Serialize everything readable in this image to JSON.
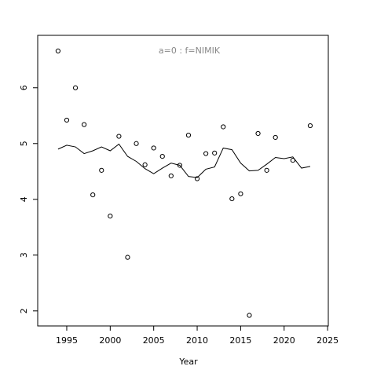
{
  "chart_data": {
    "type": "scatter",
    "title": "a=0  :  f=NIMIK",
    "xlabel": "Year",
    "xlim": [
      1991.66,
      2025.08
    ],
    "ylim": [
      1.73,
      6.94
    ],
    "xticks": [
      1995,
      2000,
      2005,
      2010,
      2015,
      2020,
      2025
    ],
    "yticks": [
      2,
      3,
      4,
      5,
      6
    ],
    "series": [
      {
        "kind": "points",
        "color": "#000000",
        "x": [
          1994,
          1995,
          1996,
          1997,
          1998,
          1999,
          2000,
          2001,
          2002,
          2003,
          2004,
          2005,
          2006,
          2007,
          2008,
          2009,
          2010,
          2011,
          2012,
          2013,
          2014,
          2015,
          2016,
          2017,
          2018,
          2019,
          2021,
          2023
        ],
        "values": [
          6.66,
          5.42,
          6.0,
          5.34,
          4.08,
          4.52,
          3.7,
          5.13,
          2.96,
          5.0,
          4.62,
          4.92,
          4.77,
          4.42,
          4.61,
          5.15,
          4.37,
          4.82,
          4.83,
          5.3,
          4.01,
          4.1,
          1.92,
          5.18,
          4.52,
          5.11,
          4.7,
          5.32
        ]
      },
      {
        "kind": "line",
        "color": "#000000",
        "x": [
          1994,
          1995,
          1996,
          1997,
          1998,
          1999,
          2000,
          2001,
          2002,
          2003,
          2004,
          2005,
          2006,
          2007,
          2008,
          2009,
          2010,
          2011,
          2012,
          2013,
          2014,
          2015,
          2016,
          2017,
          2018,
          2019,
          2020,
          2021,
          2022,
          2023
        ],
        "values": [
          4.9,
          4.97,
          4.94,
          4.82,
          4.87,
          4.94,
          4.87,
          4.99,
          4.77,
          4.68,
          4.55,
          4.46,
          4.56,
          4.65,
          4.61,
          4.41,
          4.39,
          4.54,
          4.58,
          4.92,
          4.89,
          4.65,
          4.51,
          4.52,
          4.63,
          4.75,
          4.73,
          4.76,
          4.56,
          4.59
        ]
      }
    ]
  }
}
